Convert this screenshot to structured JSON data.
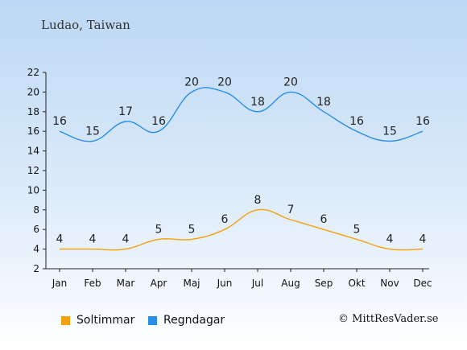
{
  "location": "Ludao, Taiwan",
  "credit": "© MittResVader.se",
  "chart_data": {
    "type": "line",
    "categories": [
      "Jan",
      "Feb",
      "Mar",
      "Apr",
      "Maj",
      "Jun",
      "Jul",
      "Aug",
      "Sep",
      "Okt",
      "Nov",
      "Dec"
    ],
    "ylim": [
      2,
      22
    ],
    "yticks": [
      2,
      4,
      6,
      8,
      10,
      12,
      14,
      16,
      18,
      20,
      22
    ],
    "series": [
      {
        "name": "Soltimmar",
        "color": "#f4a10a",
        "values": [
          4,
          4,
          4,
          5,
          5,
          6,
          8,
          7,
          6,
          5,
          4,
          4
        ]
      },
      {
        "name": "Regndagar",
        "color": "#2a8de8",
        "values": [
          16,
          15,
          17,
          16,
          20,
          20,
          18,
          20,
          18,
          16,
          15,
          16
        ]
      }
    ],
    "legend": "bottom-left"
  }
}
